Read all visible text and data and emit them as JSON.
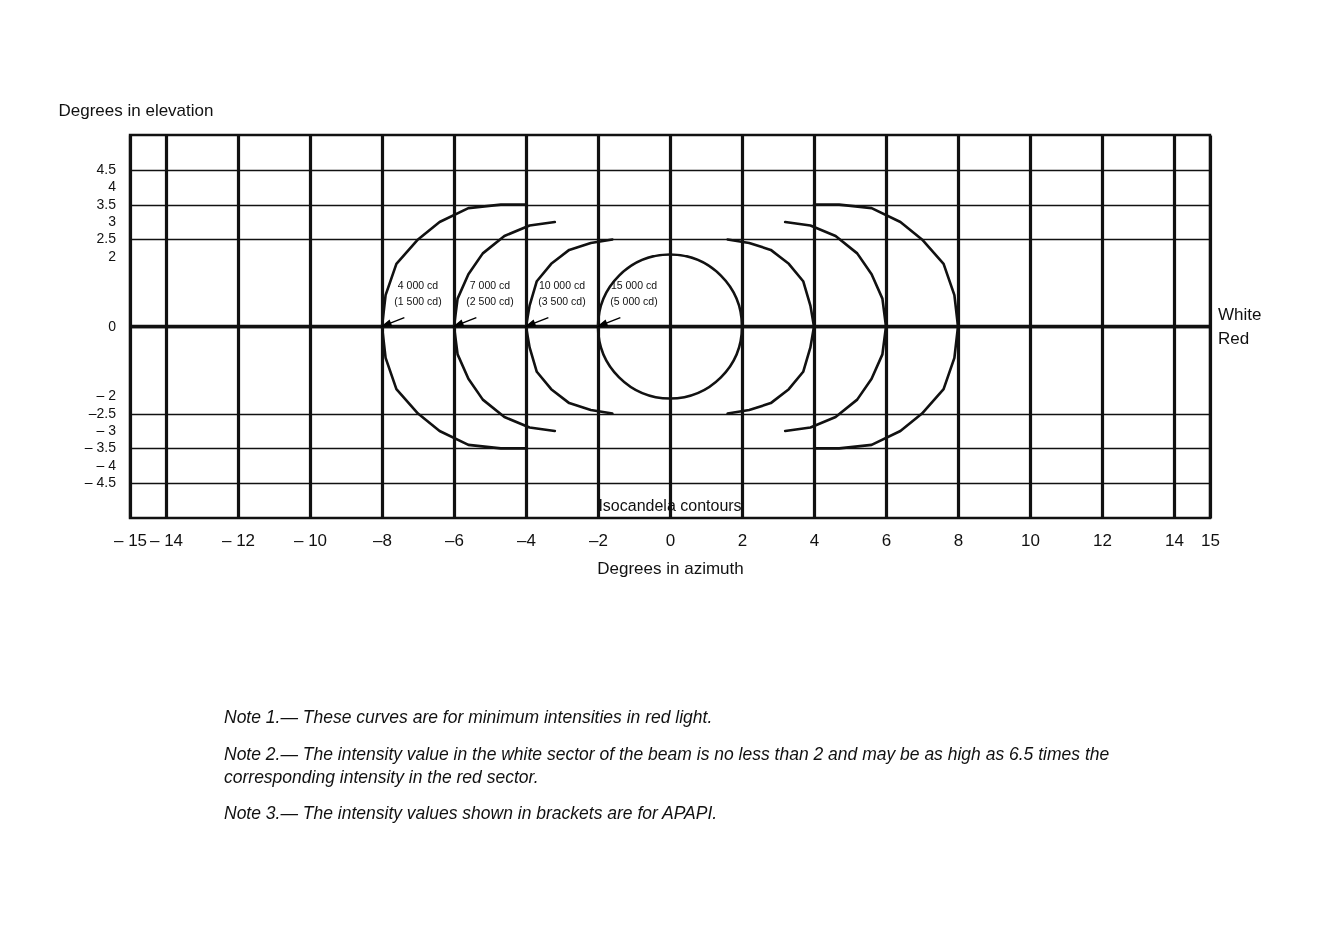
{
  "chart_data": {
    "type": "line",
    "xlabel": "Degrees in azimuth",
    "ylabel": "Degrees in elevation",
    "xlim": [
      -15,
      15
    ],
    "ylim": [
      -5.5,
      5.5
    ],
    "xticks": [
      {
        "value": -15,
        "label": "– 15"
      },
      {
        "value": -14,
        "label": "– 14"
      },
      {
        "value": -12,
        "label": "– 12"
      },
      {
        "value": -10,
        "label": "– 10"
      },
      {
        "value": -8,
        "label": "–8"
      },
      {
        "value": -6,
        "label": "–6"
      },
      {
        "value": -4,
        "label": "–4"
      },
      {
        "value": -2,
        "label": "–2"
      },
      0,
      2,
      4,
      6,
      8,
      10,
      12,
      14,
      15
    ],
    "yticks": [
      {
        "value": -4.5,
        "label": "– 4.5"
      },
      {
        "value": -4,
        "label": "– 4"
      },
      {
        "value": -3.5,
        "label": "– 3.5"
      },
      {
        "value": -3,
        "label": "– 3"
      },
      {
        "value": -2.5,
        "label": "–2.5"
      },
      {
        "value": -2,
        "label": "– 2"
      },
      0,
      2,
      2.5,
      3,
      3.5,
      4,
      4.5
    ],
    "grid": true,
    "line_style": "solid",
    "series": [
      {
        "color": "#111111",
        "x": [
          -4,
          -4.7,
          -5.6,
          -6.4,
          -7,
          -7.6,
          -7.9,
          -8,
          -7.9,
          -7.6,
          -7,
          -6.4,
          -5.6,
          -4.7,
          -4
        ],
        "values": [
          3.5,
          3.5,
          3.4,
          3,
          2.5,
          1.8,
          0.9,
          0,
          -0.9,
          -1.8,
          -2.5,
          -3,
          -3.4,
          -3.5,
          -3.5
        ]
      },
      {
        "color": "#111111",
        "x": [
          -3.2,
          -3.9,
          -4.6,
          -5.2,
          -5.6,
          -5.9,
          -6,
          -5.9,
          -5.6,
          -5.2,
          -4.6,
          -3.9,
          -3.2
        ],
        "values": [
          3,
          2.9,
          2.6,
          2.1,
          1.5,
          0.8,
          0,
          -0.8,
          -1.5,
          -2.1,
          -2.6,
          -2.9,
          -3
        ]
      },
      {
        "color": "#111111",
        "x": [
          -1.6,
          -2.2,
          -2.8,
          -3.3,
          -3.7,
          -3.9,
          -4,
          -3.9,
          -3.7,
          -3.3,
          -2.8,
          -2.2,
          -1.6
        ],
        "values": [
          2.5,
          2.4,
          2.2,
          1.8,
          1.3,
          0.6,
          0,
          -0.6,
          -1.3,
          -1.8,
          -2.2,
          -2.4,
          -2.5
        ]
      },
      {
        "color": "#111111",
        "x": [
          1.6,
          2.2,
          2.8,
          3.3,
          3.7,
          3.9,
          4,
          3.9,
          3.7,
          3.3,
          2.8,
          2.2,
          1.6
        ],
        "values": [
          2.5,
          2.4,
          2.2,
          1.8,
          1.3,
          0.6,
          0,
          -0.6,
          -1.3,
          -1.8,
          -2.2,
          -2.4,
          -2.5
        ]
      },
      {
        "color": "#111111",
        "x": [
          3.2,
          3.9,
          4.6,
          5.2,
          5.6,
          5.9,
          6,
          5.9,
          5.6,
          5.2,
          4.6,
          3.9,
          3.2
        ],
        "values": [
          3,
          2.9,
          2.6,
          2.1,
          1.5,
          0.8,
          0,
          -0.8,
          -1.5,
          -2.1,
          -2.6,
          -2.9,
          -3
        ]
      },
      {
        "color": "#111111",
        "x": [
          4,
          4.7,
          5.6,
          6.4,
          7,
          7.6,
          7.9,
          8,
          7.9,
          7.6,
          7,
          6.4,
          5.6,
          4.7,
          4
        ],
        "values": [
          3.5,
          3.5,
          3.4,
          3,
          2.5,
          1.8,
          0.9,
          0,
          -0.9,
          -1.8,
          -2.5,
          -3,
          -3.4,
          -3.5,
          -3.5
        ]
      }
    ],
    "ref_lines": [
      {
        "axis": "y",
        "value": 0,
        "label": "White",
        "color": "#111111"
      }
    ],
    "annotations": [
      {
        "text": "4 000 cd\n(1 500 cd)",
        "x": -8,
        "y": 0
      },
      {
        "text": "7 000 cd\n(2 500 cd)",
        "x": -6,
        "y": 0
      },
      {
        "text": "10 000 cd\n(3 500 cd)",
        "x": -4,
        "y": 0
      },
      {
        "text": "15 000 cd\n(5 000 cd)",
        "x": -2,
        "y": 0
      },
      "Red",
      "Isocandela contours",
      "Note 1.— These curves are for minimum intensities in red light.",
      "Note 2.— The intensity value in the white sector of the beam is no less than 2 and may be as high as 6.5 times the corresponding intensity in the red sector.",
      "Note 3.— The intensity values shown in brackets are for APAPI."
    ]
  }
}
